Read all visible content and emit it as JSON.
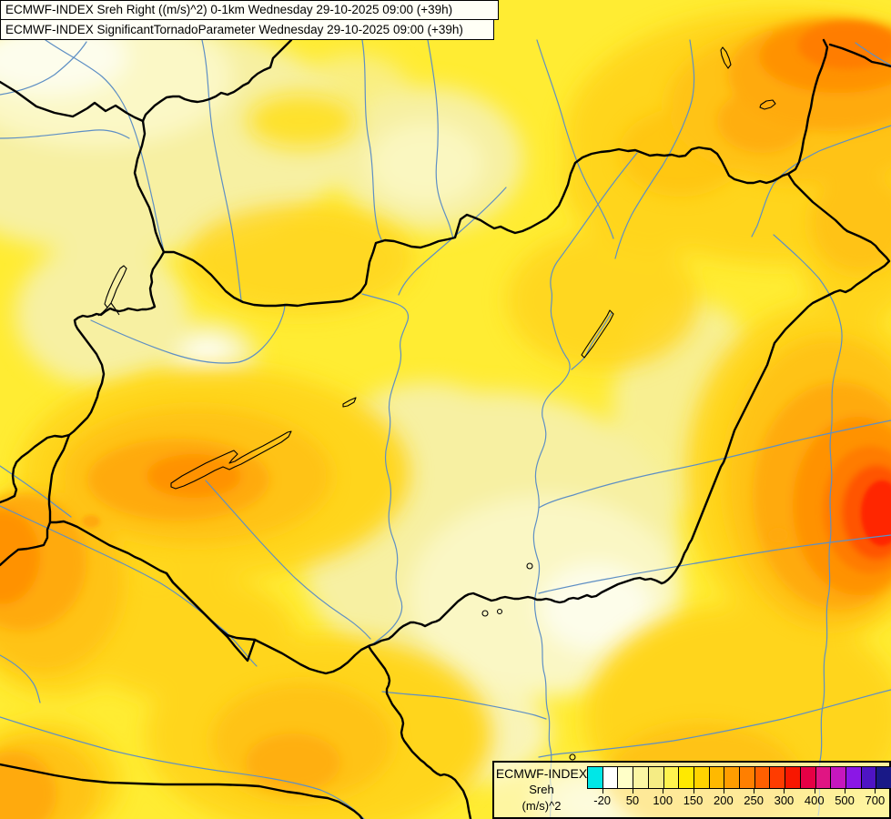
{
  "titles": {
    "line1": "ECMWF-INDEX Sreh Right ((m/s)^2) 0-1km Wednesday 29-10-2025 09:00 (+39h)",
    "line2": "ECMWF-INDEX SignificantTornadoParameter Wednesday 29-10-2025 09:00 (+39h)"
  },
  "legend": {
    "product": "ECMWF-INDEX",
    "parameter": "Sreh",
    "units": "(m/s)^2",
    "tick_labels": [
      "-20",
      "50",
      "100",
      "150",
      "200",
      "250",
      "300",
      "400",
      "500",
      "700"
    ],
    "cell_colors": [
      "#00E7E7",
      "#FFFFFF",
      "#FFFFC8",
      "#FBF6A4",
      "#F5EC84",
      "#FFF34F",
      "#FFE900",
      "#FFD300",
      "#FFB900",
      "#FF9D00",
      "#FF7F00",
      "#FF5F00",
      "#FF3C00",
      "#F81700",
      "#E60045",
      "#E01583",
      "#C617BE",
      "#8B17E6",
      "#4E14C4",
      "#191987"
    ]
  },
  "map": {
    "colors": {
      "base_fill": "#FFEC33",
      "pale_contours": [
        "#F7F0A2",
        "#FBF8C6",
        "#FDFDEC"
      ],
      "warm_contours": [
        "#FFD51D",
        "#FFC313",
        "#FFAA0B",
        "#FF9204",
        "#FF7C00",
        "#FF5506",
        "#FF2602"
      ],
      "country_border": "#000000",
      "river": "#5E8FC4",
      "lake_outline": "#000000"
    }
  }
}
